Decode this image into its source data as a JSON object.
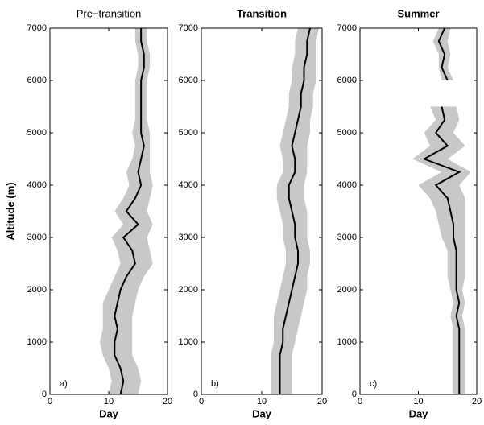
{
  "chart_data": [
    {
      "type": "line",
      "title": "Pre−transition",
      "xlabel": "Day",
      "ylabel": "Altitude (m)",
      "annotation": "a)",
      "xlim": [
        0,
        20
      ],
      "xticks": [
        0,
        10,
        20
      ],
      "ylim": [
        0,
        7000
      ],
      "yticks": [
        0,
        1000,
        2000,
        3000,
        4000,
        5000,
        6000,
        7000
      ],
      "altitudes": [
        0,
        250,
        500,
        750,
        1000,
        1250,
        1500,
        1750,
        2000,
        2250,
        2500,
        2750,
        3000,
        3250,
        3500,
        3750,
        4000,
        4250,
        4500,
        4750,
        5000,
        5250,
        5500,
        5750,
        6000,
        6250,
        6500,
        6750,
        7000
      ],
      "series": [
        {
          "color": "#000000",
          "band_color": "#c8c8c8",
          "values": [
            12,
            12.5,
            12,
            11,
            11,
            11.5,
            11,
            11.5,
            12,
            13,
            14.5,
            14,
            12.5,
            15,
            13,
            14.5,
            15.5,
            15,
            15.5,
            16,
            15.5,
            15.5,
            15.5,
            15.5,
            15.5,
            16,
            16,
            15.5,
            15.5
          ],
          "lower": [
            10,
            10.5,
            10,
            9,
            8.5,
            9,
            9,
            9,
            10,
            11,
            12,
            11.5,
            10.5,
            12.5,
            11,
            12.5,
            13.5,
            13,
            14,
            14.5,
            14,
            14.5,
            14.5,
            14.5,
            14.5,
            15,
            15,
            14.5,
            14.5
          ],
          "upper": [
            15,
            15.5,
            15,
            14,
            14,
            14,
            14,
            14.5,
            15,
            16,
            17.5,
            17,
            16.5,
            17.5,
            16.5,
            17,
            17.5,
            17,
            17,
            17,
            17,
            16.5,
            16.5,
            16.5,
            16.5,
            17,
            17,
            16.5,
            16.5
          ]
        }
      ]
    },
    {
      "type": "line",
      "title": "Transition",
      "xlabel": "Day",
      "annotation": "b)",
      "xlim": [
        0,
        20
      ],
      "xticks": [
        0,
        10,
        20
      ],
      "ylim": [
        0,
        7000
      ],
      "yticks": [
        0,
        1000,
        2000,
        3000,
        4000,
        5000,
        6000,
        7000
      ],
      "altitudes": [
        0,
        250,
        500,
        750,
        1000,
        1250,
        1500,
        1750,
        2000,
        2250,
        2500,
        2750,
        3000,
        3250,
        3500,
        3750,
        4000,
        4250,
        4500,
        4750,
        5000,
        5250,
        5500,
        5750,
        6000,
        6250,
        6500,
        6750,
        7000
      ],
      "series": [
        {
          "color": "#000000",
          "band_color": "#c8c8c8",
          "values": [
            13,
            13,
            13,
            13,
            13.5,
            13.5,
            14,
            14.5,
            15,
            15.5,
            16,
            16,
            15.5,
            15.5,
            15,
            14.5,
            14.5,
            15.5,
            15.5,
            15,
            15.5,
            16,
            16.5,
            16.5,
            17,
            17,
            17.5,
            17.5,
            18
          ],
          "lower": [
            11.5,
            11.5,
            11.5,
            11.5,
            12,
            12,
            12,
            12.5,
            13,
            13.5,
            14,
            14,
            13.5,
            13.5,
            13,
            12.5,
            12.5,
            13.5,
            13.5,
            13,
            13.5,
            14,
            14.5,
            14.5,
            15,
            15,
            15.5,
            15.5,
            16
          ],
          "upper": [
            15,
            15,
            15,
            15,
            15.5,
            16,
            16.5,
            17,
            17.5,
            17.5,
            18,
            18,
            17.5,
            17.5,
            17.5,
            17,
            17,
            17.5,
            17.5,
            17.5,
            18,
            18,
            18.5,
            18.5,
            19,
            19,
            19,
            19,
            19.5
          ]
        }
      ]
    },
    {
      "type": "line",
      "title": "Summer",
      "xlabel": "Day",
      "annotation": "c)",
      "xlim": [
        0,
        20
      ],
      "xticks": [
        0,
        10,
        20
      ],
      "ylim": [
        0,
        7000
      ],
      "yticks": [
        0,
        1000,
        2000,
        3000,
        4000,
        5000,
        6000,
        7000
      ],
      "altitudes": [
        0,
        250,
        500,
        750,
        1000,
        1250,
        1500,
        1750,
        2000,
        2250,
        2500,
        2750,
        3000,
        3250,
        3500,
        3750,
        4000,
        4250,
        4500,
        4750,
        5000,
        5250,
        5500,
        5750,
        6000,
        6250,
        6500,
        6750,
        7000
      ],
      "series": [
        {
          "color": "#000000",
          "band_color": "#c8c8c8",
          "values": [
            17,
            17,
            17,
            17,
            17,
            17,
            16.5,
            17,
            16.5,
            16.5,
            16.5,
            16.5,
            16,
            16,
            15.5,
            15,
            13,
            17,
            11,
            15,
            13,
            14.5,
            14,
            null,
            15,
            14,
            14.5,
            13.5,
            14.5
          ],
          "lower": [
            16,
            16,
            16,
            16,
            16,
            16,
            15.5,
            16,
            15.5,
            15,
            15,
            15,
            14,
            13.5,
            13,
            12,
            10,
            14,
            9,
            12,
            11,
            13,
            12,
            null,
            14,
            13.5,
            13.5,
            12.5,
            13.5
          ],
          "upper": [
            18,
            18,
            18,
            18,
            18,
            18,
            17.5,
            18,
            17.5,
            18,
            18,
            18,
            18,
            18,
            18,
            18,
            17,
            19,
            15,
            18,
            16,
            17,
            16.5,
            null,
            16,
            15,
            15.5,
            15,
            15.5
          ]
        }
      ]
    }
  ]
}
